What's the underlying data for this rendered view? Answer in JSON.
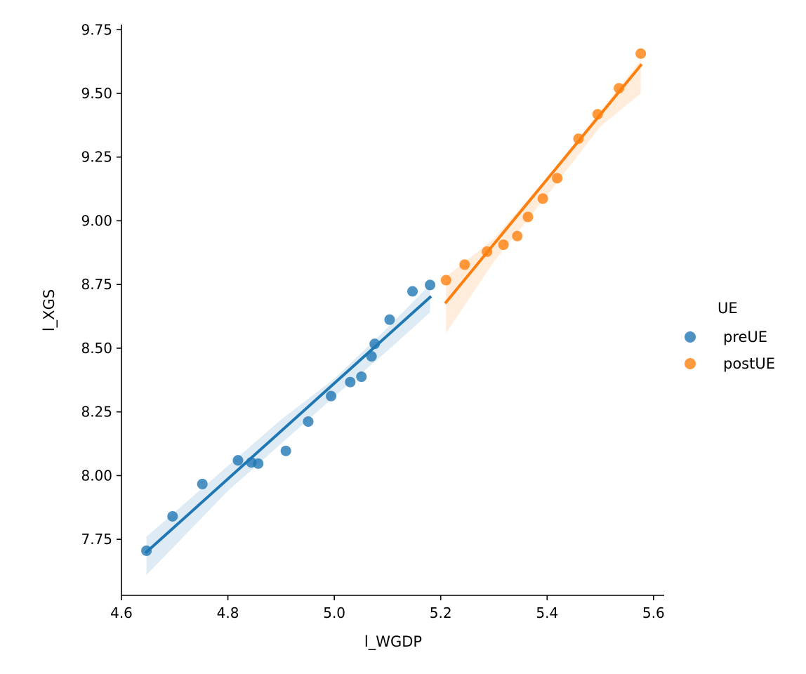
{
  "chart_data": {
    "type": "scatter",
    "xlabel": "l_WGDP",
    "ylabel": "l_XGS",
    "xlim": [
      4.6,
      5.62
    ],
    "ylim": [
      7.53,
      9.77
    ],
    "xticks": [
      4.6,
      4.8,
      5.0,
      5.2,
      5.4,
      5.6
    ],
    "xtick_labels": [
      "4.6",
      "4.8",
      "5.0",
      "5.2",
      "5.4",
      "5.6"
    ],
    "yticks": [
      7.75,
      8.0,
      8.25,
      8.5,
      8.75,
      9.0,
      9.25,
      9.5,
      9.75
    ],
    "ytick_labels": [
      "7.75",
      "8.00",
      "8.25",
      "8.50",
      "8.75",
      "9.00",
      "9.25",
      "9.50",
      "9.75"
    ],
    "grid": false,
    "legend": {
      "title": "UE",
      "position": "right"
    },
    "series": [
      {
        "name": "preUE",
        "color": "#1f77b4",
        "points": [
          [
            4.647,
            7.705
          ],
          [
            4.696,
            7.84
          ],
          [
            4.752,
            7.967
          ],
          [
            4.819,
            8.06
          ],
          [
            4.844,
            8.052
          ],
          [
            4.857,
            8.047
          ],
          [
            4.909,
            8.097
          ],
          [
            4.951,
            8.212
          ],
          [
            4.994,
            8.312
          ],
          [
            5.03,
            8.367
          ],
          [
            5.051,
            8.388
          ],
          [
            5.07,
            8.468
          ],
          [
            5.076,
            8.517
          ],
          [
            5.104,
            8.612
          ],
          [
            5.147,
            8.723
          ],
          [
            5.18,
            8.748
          ]
        ],
        "fit": {
          "x": [
            4.647,
            5.18
          ],
          "y": [
            7.7,
            8.7
          ]
        },
        "ci_upper": [
          [
            4.647,
            7.76
          ],
          [
            4.9,
            8.22
          ],
          [
            5.0,
            8.38
          ],
          [
            5.1,
            8.58
          ],
          [
            5.18,
            8.75
          ]
        ],
        "ci_lower": [
          [
            4.647,
            7.61
          ],
          [
            4.8,
            7.94
          ],
          [
            5.0,
            8.31
          ],
          [
            5.1,
            8.49
          ],
          [
            5.18,
            8.64
          ]
        ]
      },
      {
        "name": "postUE",
        "color": "#ff7f0e",
        "points": [
          [
            5.21,
            8.767
          ],
          [
            5.245,
            8.828
          ],
          [
            5.287,
            8.879
          ],
          [
            5.318,
            8.906
          ],
          [
            5.344,
            8.94
          ],
          [
            5.364,
            9.015
          ],
          [
            5.392,
            9.087
          ],
          [
            5.419,
            9.167
          ],
          [
            5.459,
            9.322
          ],
          [
            5.495,
            9.418
          ],
          [
            5.535,
            9.52
          ],
          [
            5.576,
            9.656
          ]
        ],
        "fit": {
          "x": [
            5.21,
            5.576
          ],
          "y": [
            8.68,
            9.61
          ]
        },
        "ci_upper": [
          [
            5.21,
            8.78
          ],
          [
            5.3,
            8.93
          ],
          [
            5.4,
            9.17
          ],
          [
            5.5,
            9.43
          ],
          [
            5.576,
            9.63
          ]
        ],
        "ci_lower": [
          [
            5.21,
            8.56
          ],
          [
            5.3,
            8.84
          ],
          [
            5.4,
            9.1
          ],
          [
            5.5,
            9.37
          ],
          [
            5.576,
            9.5
          ]
        ]
      }
    ]
  }
}
